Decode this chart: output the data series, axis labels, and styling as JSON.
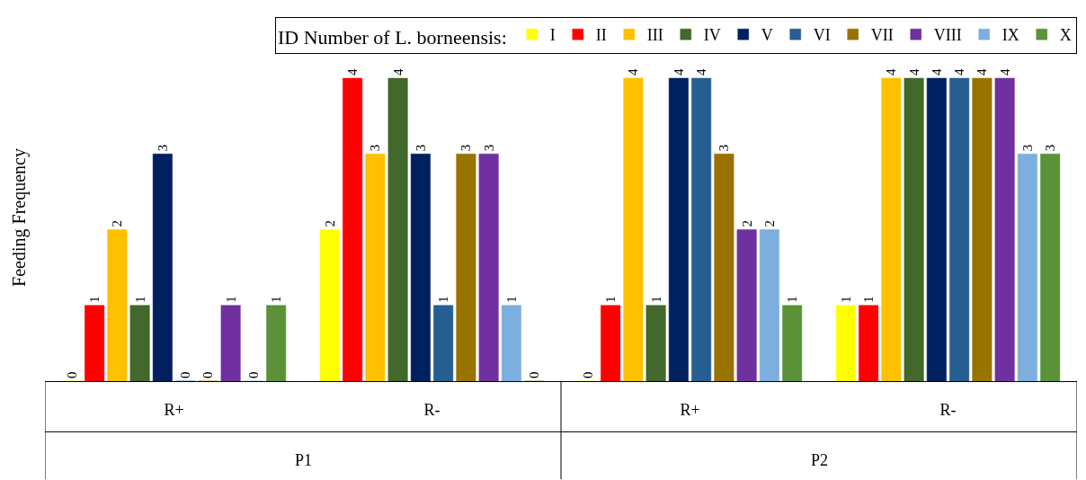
{
  "chart_data": {
    "type": "bar",
    "ylabel": "Feeding Frequency",
    "legend_title": "ID Number of L. borneensis:",
    "categories": [
      "R+",
      "R-",
      "R+",
      "R-"
    ],
    "series": [
      {
        "name": "I",
        "color": "#ffff00",
        "values": [
          0,
          2,
          0,
          1
        ]
      },
      {
        "name": "II",
        "color": "#ff0000",
        "values": [
          1,
          4,
          1,
          1
        ]
      },
      {
        "name": "III",
        "color": "#ffc000",
        "values": [
          2,
          3,
          4,
          4
        ]
      },
      {
        "name": "IV",
        "color": "#43682b",
        "values": [
          1,
          4,
          1,
          4
        ]
      },
      {
        "name": "V",
        "color": "#002060",
        "values": [
          3,
          3,
          4,
          4
        ]
      },
      {
        "name": "VI",
        "color": "#255e91",
        "values": [
          0,
          1,
          4,
          4
        ]
      },
      {
        "name": "VII",
        "color": "#997300",
        "values": [
          0,
          3,
          3,
          4
        ]
      },
      {
        "name": "VIII",
        "color": "#7030a0",
        "values": [
          1,
          3,
          2,
          4
        ]
      },
      {
        "name": "IX",
        "color": "#7cafdd",
        "values": [
          0,
          1,
          2,
          3
        ]
      },
      {
        "name": "X",
        "color": "#5b9239",
        "values": [
          1,
          0,
          1,
          3
        ]
      }
    ],
    "annotations": [
      "P1",
      "P2"
    ],
    "data_labels": true,
    "legend": "top right"
  }
}
